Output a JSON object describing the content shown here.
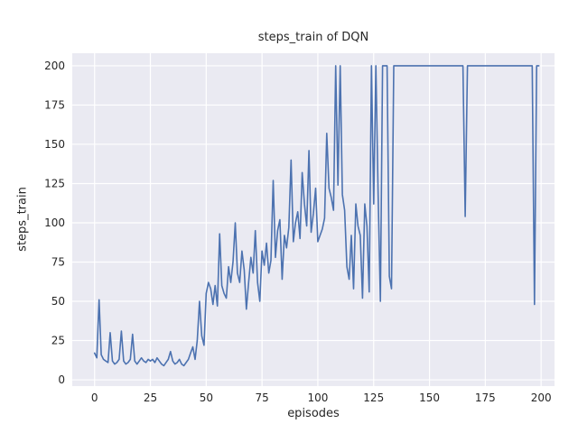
{
  "chart_data": {
    "type": "line",
    "title": "steps_train of DQN",
    "xlabel": "episodes",
    "ylabel": "steps_train",
    "x_mode": "index",
    "x_ticks": [
      0,
      25,
      50,
      75,
      100,
      125,
      150,
      175,
      200
    ],
    "y_ticks": [
      0,
      25,
      50,
      75,
      100,
      125,
      150,
      175,
      200
    ],
    "xlim": [
      -10,
      206
    ],
    "ylim": [
      -4,
      208
    ],
    "grid": true,
    "legend": "none",
    "line_color": "#4c72b0",
    "plot_bg": "#eaeaf2",
    "grid_color": "#ffffff",
    "text_color": "#262626",
    "series": [
      {
        "name": "steps_train",
        "values": [
          17,
          14,
          51,
          16,
          13,
          12,
          11,
          30,
          12,
          10,
          11,
          13,
          31,
          12,
          10,
          11,
          13,
          29,
          12,
          10,
          12,
          14,
          12,
          11,
          13,
          12,
          13,
          11,
          14,
          12,
          10,
          9,
          11,
          13,
          18,
          12,
          10,
          11,
          13,
          10,
          9,
          11,
          13,
          17,
          21,
          13,
          25,
          50,
          28,
          22,
          55,
          62,
          58,
          48,
          60,
          47,
          93,
          60,
          55,
          52,
          72,
          62,
          75,
          100,
          68,
          62,
          82,
          70,
          45,
          62,
          78,
          68,
          95,
          62,
          50,
          82,
          73,
          87,
          68,
          76,
          127,
          78,
          95,
          102,
          64,
          92,
          84,
          97,
          140,
          88,
          100,
          107,
          90,
          132,
          112,
          98,
          146,
          94,
          106,
          122,
          88,
          92,
          96,
          103,
          157,
          122,
          116,
          108,
          200,
          124,
          200,
          118,
          108,
          72,
          64,
          92,
          58,
          112,
          98,
          92,
          52,
          112,
          98,
          56,
          200,
          112,
          200,
          118,
          50,
          200,
          200,
          200,
          66,
          58,
          200,
          200,
          200,
          200,
          200,
          200,
          200,
          200,
          200,
          200,
          200,
          200,
          200,
          200,
          200,
          200,
          200,
          200,
          200,
          200,
          200,
          200,
          200,
          200,
          200,
          200,
          200,
          200,
          200,
          200,
          200,
          200,
          104,
          200,
          200,
          200,
          200,
          200,
          200,
          200,
          200,
          200,
          200,
          200,
          200,
          200,
          200,
          200,
          200,
          200,
          200,
          200,
          200,
          200,
          200,
          200,
          200,
          200,
          200,
          200,
          200,
          200,
          200,
          48,
          200,
          200
        ]
      }
    ]
  }
}
